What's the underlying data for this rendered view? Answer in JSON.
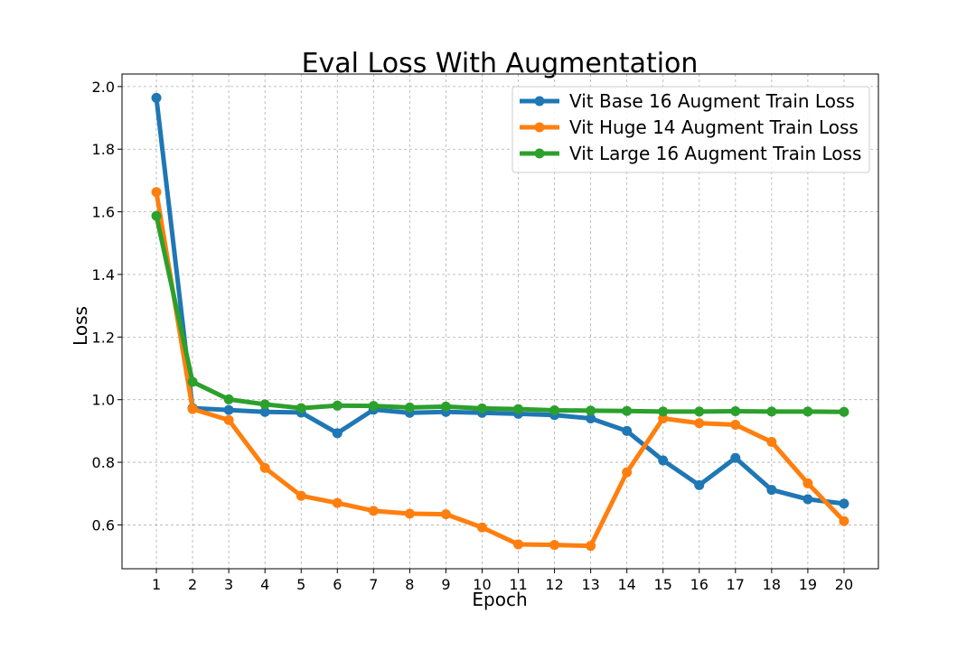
{
  "chart_data": {
    "type": "line",
    "title": "Eval Loss With Augmentation",
    "xlabel": "Epoch",
    "ylabel": "Loss",
    "x": [
      1,
      2,
      3,
      4,
      5,
      6,
      7,
      8,
      9,
      10,
      11,
      12,
      13,
      14,
      15,
      16,
      17,
      18,
      19,
      20
    ],
    "x_ticks": [
      "1",
      "2",
      "3",
      "4",
      "5",
      "6",
      "7",
      "8",
      "9",
      "10",
      "11",
      "12",
      "13",
      "14",
      "15",
      "16",
      "17",
      "18",
      "19",
      "20"
    ],
    "ylim": [
      0.46,
      2.04
    ],
    "y_ticks": [
      "0.6",
      "0.8",
      "1.0",
      "1.2",
      "1.4",
      "1.6",
      "1.8",
      "2.0"
    ],
    "y_tick_values": [
      0.6,
      0.8,
      1.0,
      1.2,
      1.4,
      1.6,
      1.8,
      2.0
    ],
    "grid": true,
    "legend_position": "top-right",
    "series": [
      {
        "name": "Vit Base 16 Augment Train Loss",
        "color": "#1f77b4",
        "values": [
          1.964,
          0.973,
          0.967,
          0.961,
          0.959,
          0.893,
          0.968,
          0.958,
          0.961,
          0.958,
          0.955,
          0.951,
          0.94,
          0.9,
          0.806,
          0.727,
          0.814,
          0.712,
          0.682,
          0.668
        ]
      },
      {
        "name": "Vit Huge 14 Augment Train Loss",
        "color": "#ff7f0e",
        "values": [
          1.663,
          0.97,
          0.935,
          0.782,
          0.693,
          0.67,
          0.645,
          0.636,
          0.634,
          0.592,
          0.538,
          0.536,
          0.533,
          0.768,
          0.94,
          0.925,
          0.92,
          0.865,
          0.733,
          0.612
        ]
      },
      {
        "name": "Vit Large 16 Augment Train Loss",
        "color": "#2ca02c",
        "values": [
          1.587,
          1.057,
          1.001,
          0.985,
          0.973,
          0.981,
          0.98,
          0.975,
          0.978,
          0.972,
          0.97,
          0.966,
          0.965,
          0.964,
          0.962,
          0.962,
          0.963,
          0.962,
          0.962,
          0.961
        ]
      }
    ]
  }
}
